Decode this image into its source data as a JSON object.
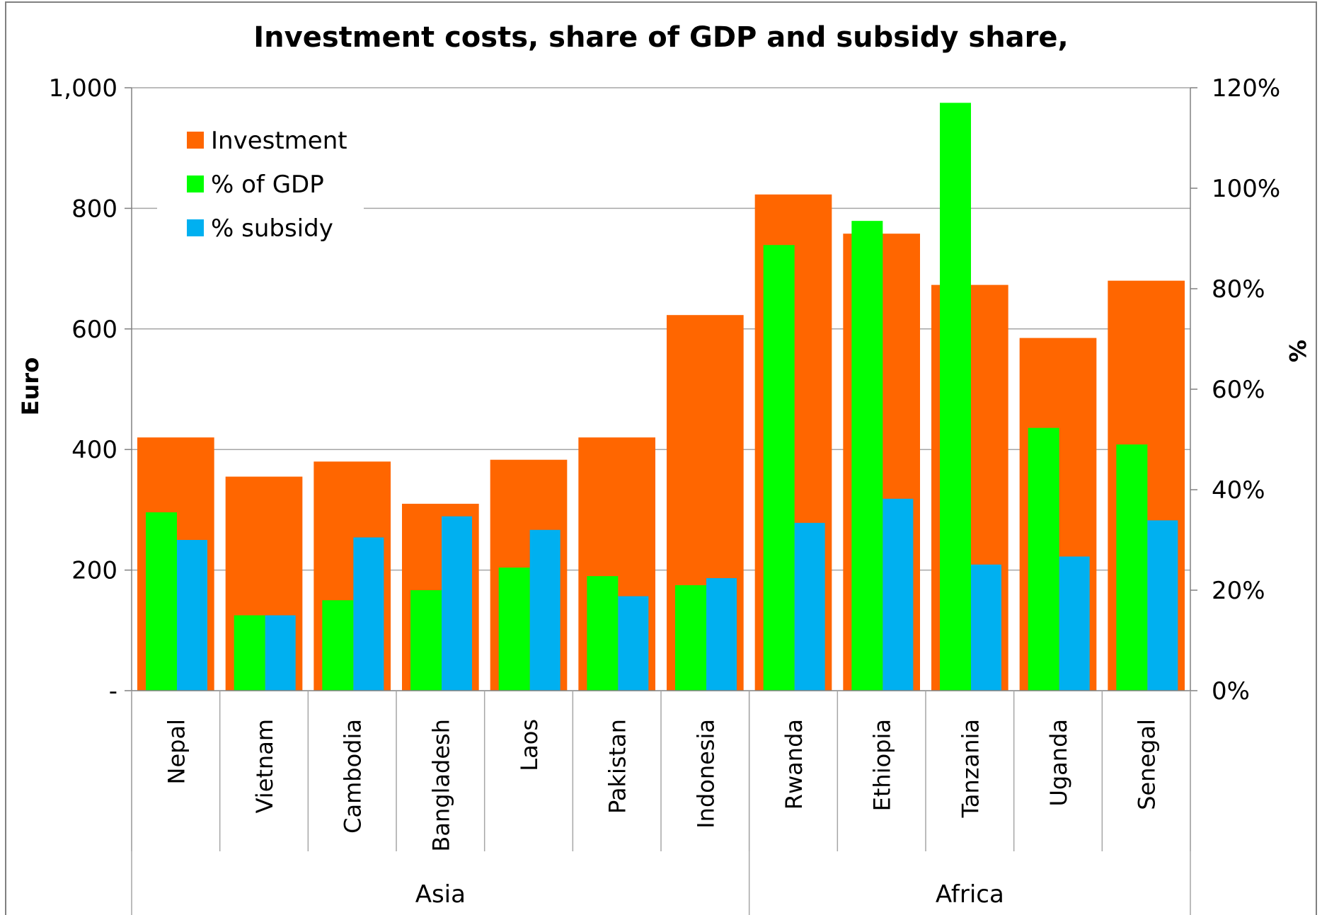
{
  "chart_data": {
    "type": "bar",
    "title": "Investment costs, share of GDP and subsidy share,",
    "ylabel_left": "Euro",
    "ylabel_right": "%",
    "ylim_left": [
      0,
      1000
    ],
    "ylim_right": [
      0,
      1.2
    ],
    "yticks_left": [
      "-",
      "200",
      "400",
      "600",
      "800",
      "1,000"
    ],
    "yticks_right": [
      "0%",
      "20%",
      "40%",
      "60%",
      "80%",
      "100%",
      "120%"
    ],
    "grid": "horizontal",
    "legend_position": "top-left",
    "categories": [
      "Nepal",
      "Vietnam",
      "Cambodia",
      "Bangladesh",
      "Laos",
      "Pakistan",
      "Indonesia",
      "Rwanda",
      "Ethiopia",
      "Tanzania",
      "Uganda",
      "Senegal"
    ],
    "groups": [
      {
        "label": "Asia",
        "count": 7
      },
      {
        "label": "Africa",
        "count": 5
      }
    ],
    "series": [
      {
        "name": "Investment",
        "axis": "left",
        "color": "#ff6600",
        "values": [
          420,
          355,
          380,
          310,
          383,
          420,
          623,
          823,
          758,
          673,
          585,
          680
        ]
      },
      {
        "name": "% of GDP",
        "axis": "right",
        "color": "#00ff00",
        "values": [
          0.355,
          0.15,
          0.18,
          0.2,
          0.245,
          0.228,
          0.21,
          0.887,
          0.935,
          1.17,
          0.523,
          0.49
        ]
      },
      {
        "name": "% subsidy",
        "axis": "right",
        "color": "#00b0f0",
        "values": [
          0.3,
          0.15,
          0.305,
          0.347,
          0.32,
          0.188,
          0.224,
          0.334,
          0.382,
          0.251,
          0.267,
          0.339
        ]
      }
    ]
  }
}
